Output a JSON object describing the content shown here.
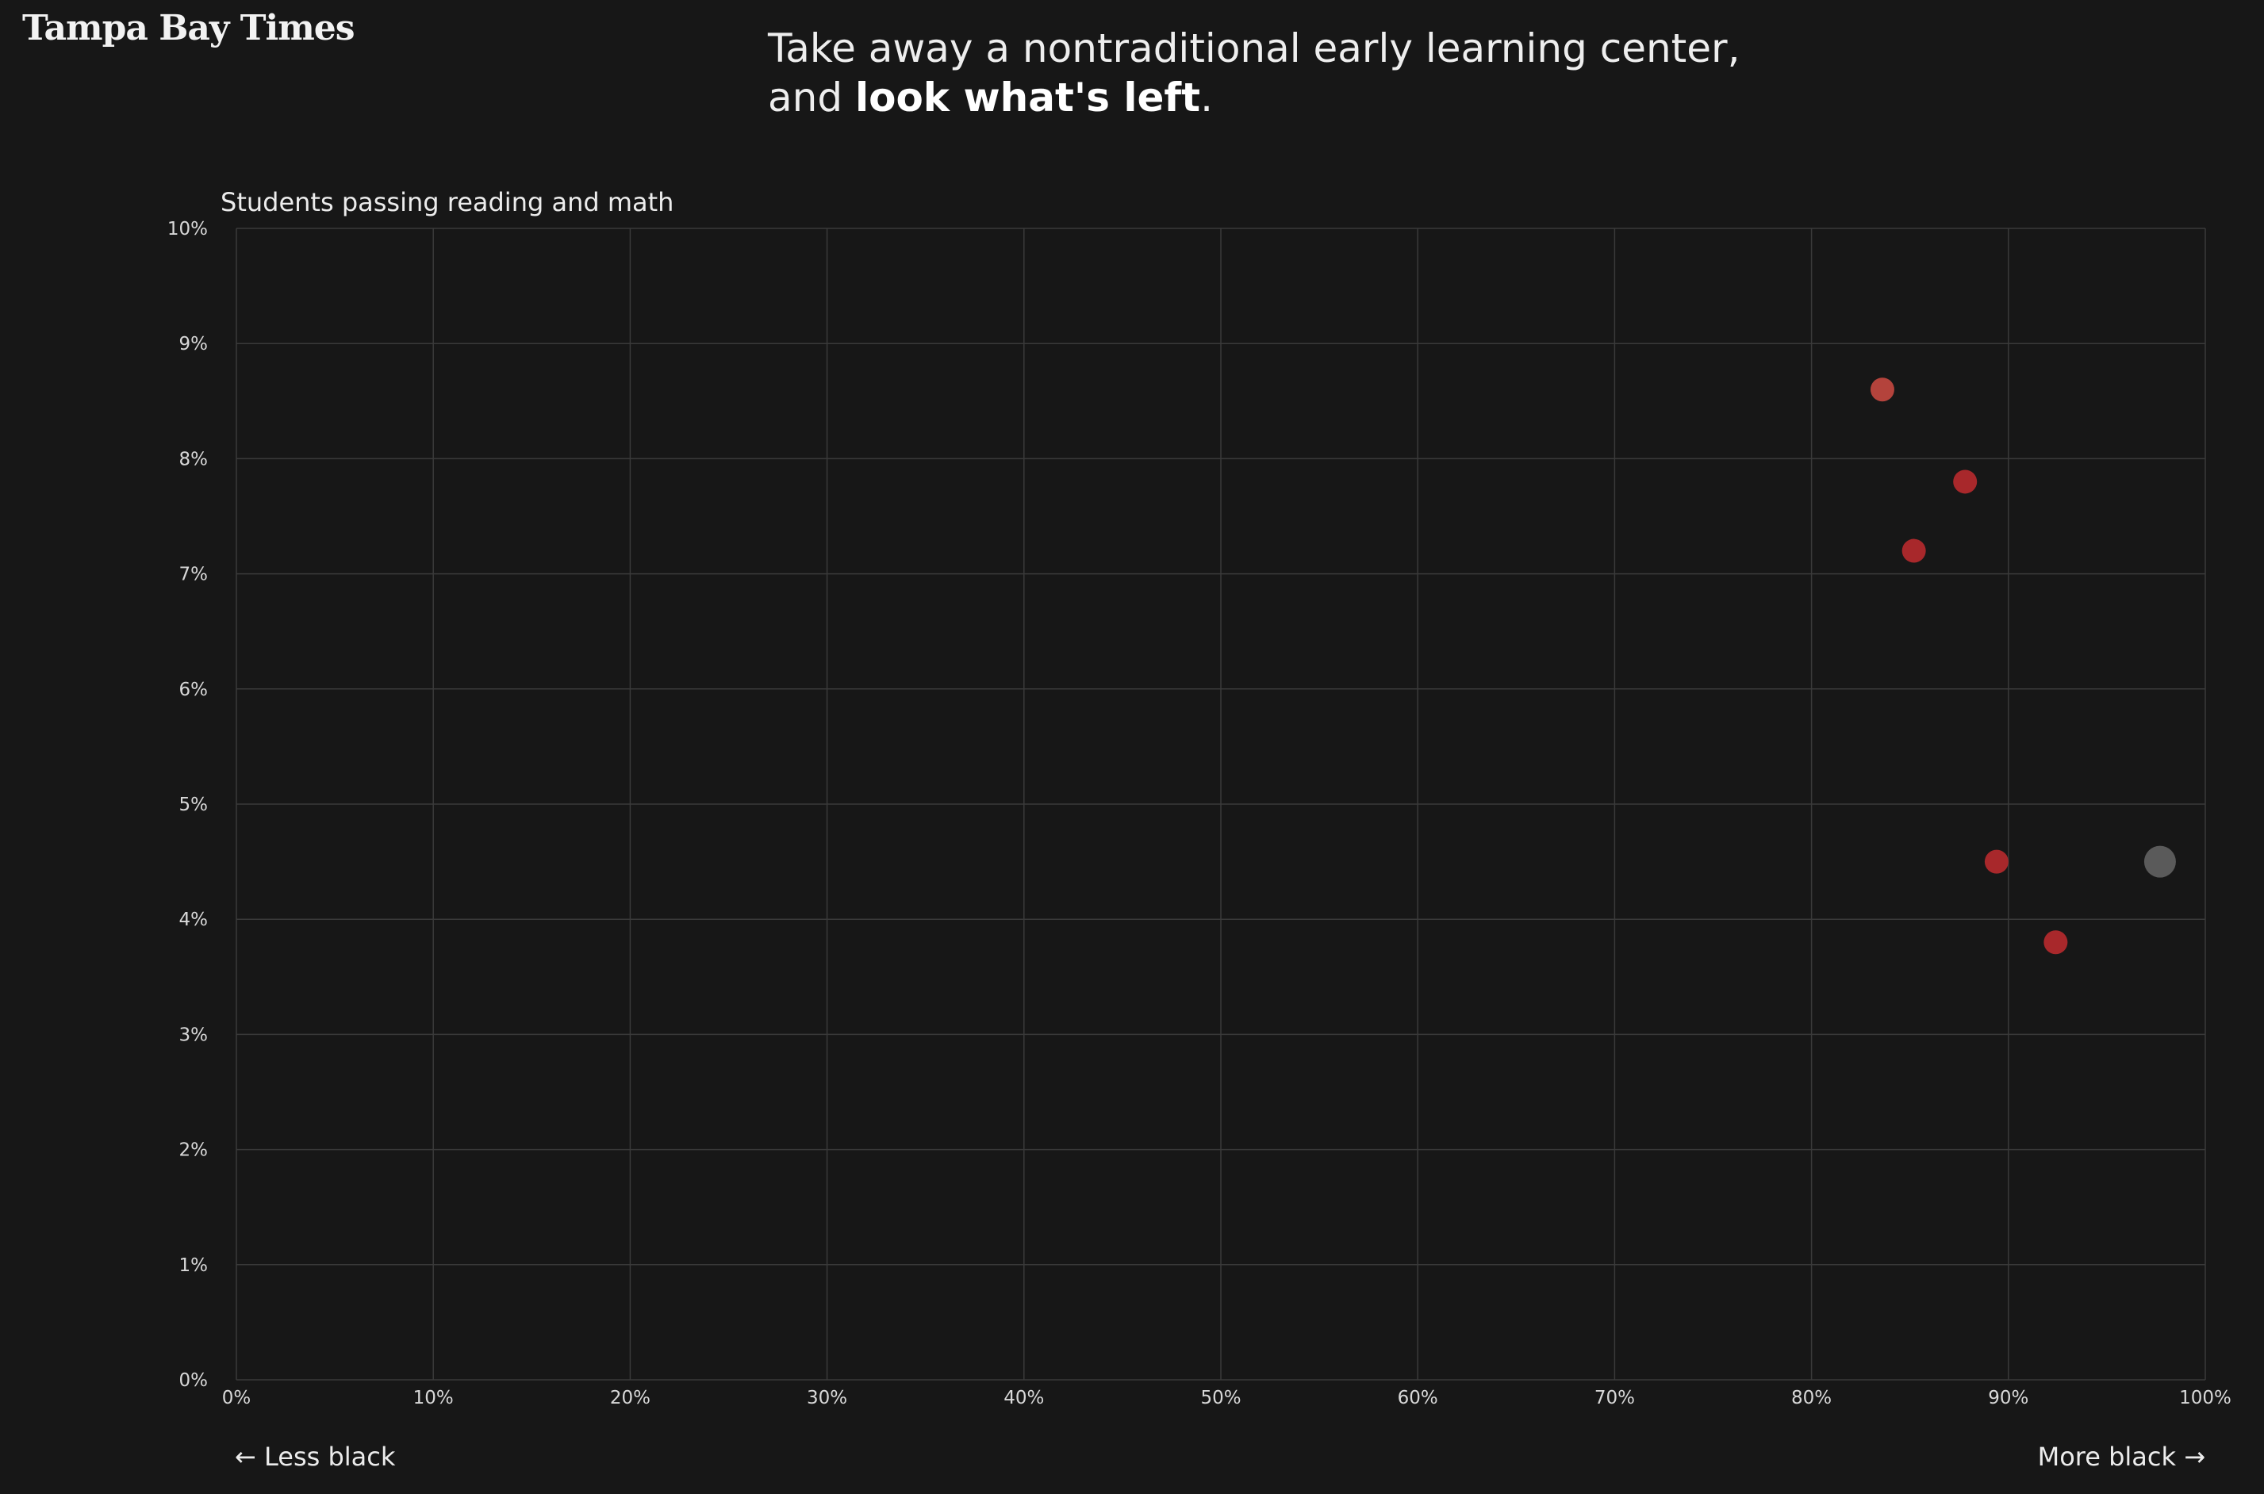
{
  "brand": {
    "logo_text": "Tampa Bay Times"
  },
  "headline": {
    "line1": "Take away a nontraditional early learning center,",
    "line2_prefix": "and ",
    "line2_bold": "look what's left",
    "line2_suffix": "."
  },
  "direction_labels": {
    "left": "← Less black",
    "right": "More black →"
  },
  "colors": {
    "background": "#171717",
    "grid": "#3a3a3a",
    "tick_text": "#d8d8d8",
    "point_red": "#a8282b",
    "point_red_light": "#b4433c",
    "point_gray": "#5a5a5a"
  },
  "chart_data": {
    "type": "scatter",
    "title": "",
    "ylabel": "Students passing reading and math",
    "xlabel": "",
    "xlim": [
      0,
      100
    ],
    "ylim": [
      0,
      10
    ],
    "x_ticks": [
      "0%",
      "10%",
      "20%",
      "30%",
      "40%",
      "50%",
      "60%",
      "70%",
      "80%",
      "90%",
      "100%"
    ],
    "y_ticks": [
      "0%",
      "1%",
      "2%",
      "3%",
      "4%",
      "5%",
      "6%",
      "7%",
      "8%",
      "9%",
      "10%"
    ],
    "grid": true,
    "points": [
      {
        "x": 83.6,
        "y": 8.6,
        "color": "#b4433c"
      },
      {
        "x": 87.8,
        "y": 7.8,
        "color": "#a8282b"
      },
      {
        "x": 85.2,
        "y": 7.2,
        "color": "#a8282b"
      },
      {
        "x": 89.4,
        "y": 4.5,
        "color": "#a8282b"
      },
      {
        "x": 92.4,
        "y": 3.8,
        "color": "#a8282b"
      },
      {
        "x": 97.7,
        "y": 4.5,
        "color": "#5a5a5a"
      }
    ]
  }
}
